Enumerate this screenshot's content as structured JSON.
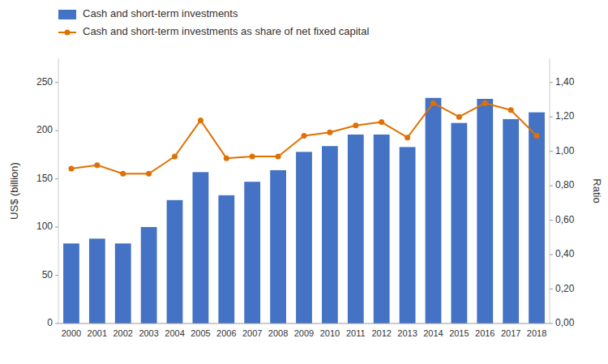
{
  "chart_data": {
    "type": "bar",
    "categories": [
      "2000",
      "2001",
      "2002",
      "2003",
      "2004",
      "2005",
      "2006",
      "2007",
      "2008",
      "2009",
      "2010",
      "2011",
      "2012",
      "2013",
      "2014",
      "2015",
      "2016",
      "2017",
      "2018"
    ],
    "series": [
      {
        "name": "Cash and short-term investments",
        "type": "bar",
        "color": "#4472C4",
        "values": [
          83,
          88,
          83,
          100,
          128,
          157,
          133,
          147,
          159,
          178,
          184,
          196,
          196,
          183,
          234,
          208,
          233,
          212,
          219
        ]
      },
      {
        "name": "Cash and short-term investments as share of net fixed capital",
        "type": "line",
        "color": "#E07000",
        "marker": "circle",
        "axis": "y2",
        "values": [
          0.9,
          0.92,
          0.87,
          0.87,
          0.97,
          1.18,
          0.96,
          0.97,
          0.97,
          1.09,
          1.11,
          1.15,
          1.17,
          1.08,
          1.28,
          1.2,
          1.28,
          1.24,
          1.09
        ]
      }
    ],
    "y_label": "US$ (billion)",
    "y2_label": "Ratio",
    "ylim": [
      0,
      275
    ],
    "yticks": [
      0,
      50,
      100,
      150,
      200,
      250
    ],
    "y2lim": [
      0.0,
      1.54
    ],
    "y2ticks": [
      {
        "value": 0.0,
        "label": "0,00"
      },
      {
        "value": 0.2,
        "label": "0,20"
      },
      {
        "value": 0.4,
        "label": "0,40"
      },
      {
        "value": 0.6,
        "label": "0,60"
      },
      {
        "value": 0.8,
        "label": "0,80"
      },
      {
        "value": 1.0,
        "label": "1,00"
      },
      {
        "value": 1.2,
        "label": "1,20"
      },
      {
        "value": 1.4,
        "label": "1,40"
      }
    ],
    "grid": false,
    "legend": "upper left"
  }
}
